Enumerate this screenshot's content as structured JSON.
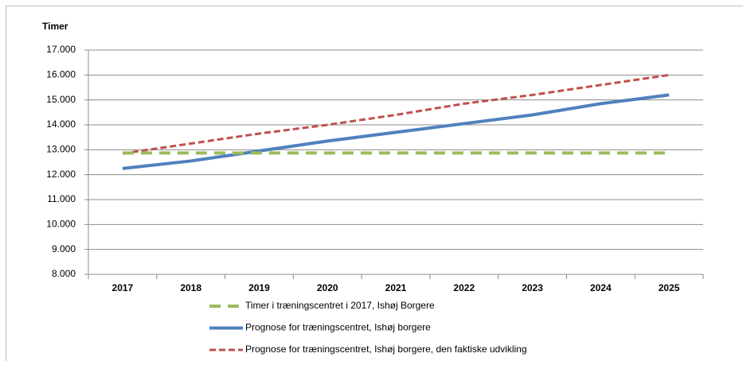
{
  "chart_data": {
    "type": "line",
    "y_label": "Timer",
    "categories": [
      "2017",
      "2018",
      "2019",
      "2020",
      "2021",
      "2022",
      "2023",
      "2024",
      "2025"
    ],
    "series": [
      {
        "name": "Timer i træningscentret i 2017, Ishøj Borgere",
        "color": "#9bbb59",
        "line_style": "dashed",
        "values": [
          12870,
          12870,
          12870,
          12870,
          12870,
          12870,
          12870,
          12870,
          12870
        ]
      },
      {
        "name": "Prognose for træningscentret, Ishøj borgere",
        "color": "#4f81bd",
        "line_style": "solid",
        "values": [
          12250,
          12550,
          12950,
          13350,
          13700,
          14050,
          14400,
          14850,
          15200
        ]
      },
      {
        "name": "Prognose for træningscentret, Ishøj borgere, den faktiske udvikling",
        "color": "#c0504d",
        "line_style": "dotted",
        "values": [
          12850,
          13250,
          13650,
          14000,
          14400,
          14850,
          15200,
          15600,
          16000
        ]
      }
    ],
    "ylim": [
      8000,
      17000
    ],
    "yticks": [
      {
        "value": 8000,
        "label": "8.000"
      },
      {
        "value": 9000,
        "label": "9.000"
      },
      {
        "value": 10000,
        "label": "10.000"
      },
      {
        "value": 11000,
        "label": "11.000"
      },
      {
        "value": 12000,
        "label": "12.000"
      },
      {
        "value": 13000,
        "label": "13.000"
      },
      {
        "value": 14000,
        "label": "14.000"
      },
      {
        "value": 15000,
        "label": "15.000"
      },
      {
        "value": 16000,
        "label": "16.000"
      },
      {
        "value": 17000,
        "label": "17.000"
      }
    ],
    "grid": true
  }
}
